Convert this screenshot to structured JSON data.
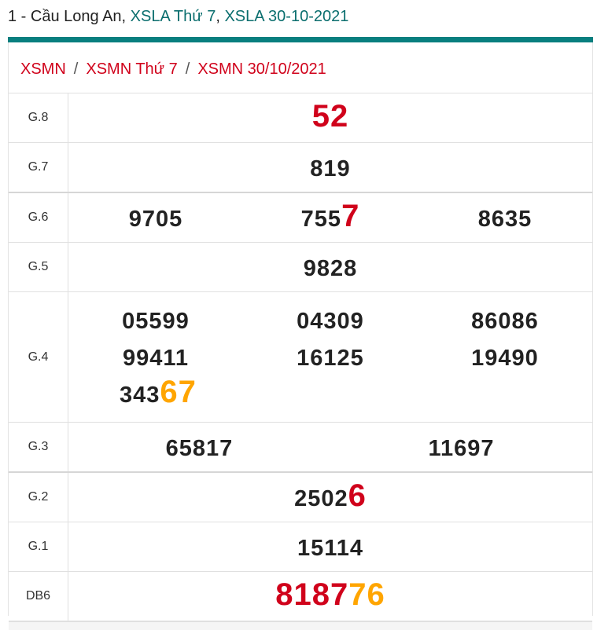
{
  "header": {
    "prefix": "1 - Cầu Long An, ",
    "link1": "XSLA Thứ 7",
    "comma": ", ",
    "link2": "XSLA 30-10-2021"
  },
  "breadcrumb": [
    "XSMN",
    "XSMN Thứ 7",
    "XSMN 30/10/2021"
  ],
  "breadcrumb_sep": "/",
  "colors": {
    "accent": "#087f7f",
    "red": "#d0021b",
    "orange": "#ffa500"
  },
  "prizes": [
    {
      "label": "G.8",
      "numbers": [
        {
          "base": "",
          "tail": "52",
          "tail_color": "red"
        }
      ]
    },
    {
      "label": "G.7",
      "numbers": [
        {
          "base": "819",
          "tail": "",
          "tail_color": ""
        }
      ]
    },
    {
      "label": "G.6",
      "numbers": [
        {
          "base": "9705",
          "tail": "",
          "tail_color": ""
        },
        {
          "base": "755",
          "tail": "7",
          "tail_color": "red"
        },
        {
          "base": "8635",
          "tail": "",
          "tail_color": ""
        }
      ]
    },
    {
      "label": "G.5",
      "numbers": [
        {
          "base": "9828",
          "tail": "",
          "tail_color": ""
        }
      ]
    },
    {
      "label": "G.4",
      "numbers": [
        {
          "base": "05599",
          "tail": "",
          "tail_color": ""
        },
        {
          "base": "04309",
          "tail": "",
          "tail_color": ""
        },
        {
          "base": "86086",
          "tail": "",
          "tail_color": ""
        },
        {
          "base": "99411",
          "tail": "",
          "tail_color": ""
        },
        {
          "base": "16125",
          "tail": "",
          "tail_color": ""
        },
        {
          "base": "19490",
          "tail": "",
          "tail_color": ""
        },
        {
          "base": "343",
          "tail": "67",
          "tail_color": "orange"
        }
      ]
    },
    {
      "label": "G.3",
      "numbers": [
        {
          "base": "65817",
          "tail": "",
          "tail_color": ""
        },
        {
          "base": "11697",
          "tail": "",
          "tail_color": ""
        }
      ]
    },
    {
      "label": "G.2",
      "numbers": [
        {
          "base": "2502",
          "tail": "6",
          "tail_color": "red"
        }
      ]
    },
    {
      "label": "G.1",
      "numbers": [
        {
          "base": "15114",
          "tail": "",
          "tail_color": ""
        }
      ]
    },
    {
      "label": "DB6",
      "numbers": [
        {
          "base": "8187",
          "tail": "76",
          "tail_color": "orange",
          "base_color": "red"
        }
      ]
    }
  ]
}
